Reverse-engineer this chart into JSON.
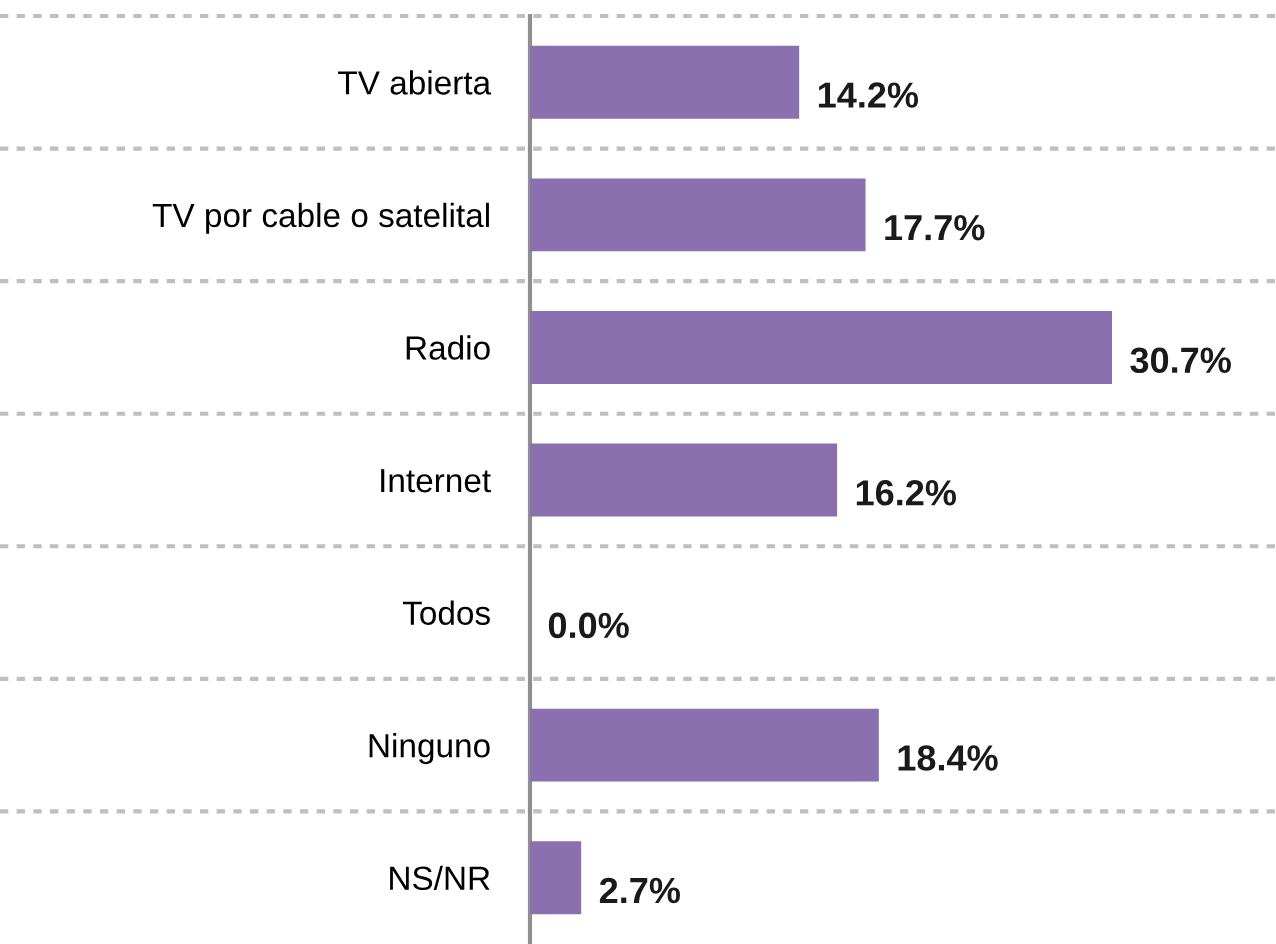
{
  "chart_data": {
    "type": "bar",
    "orientation": "horizontal",
    "categories": [
      "TV abierta",
      "TV por cable o satelital",
      "Radio",
      "Internet",
      "Todos",
      "Ninguno",
      "NS/NR"
    ],
    "values": [
      14.2,
      17.7,
      30.7,
      16.2,
      0.0,
      18.4,
      2.7
    ],
    "value_labels": [
      "14.2%",
      "17.7%",
      "30.7%",
      "16.2%",
      "0.0%",
      "18.4%",
      "2.7%"
    ],
    "color": "#8a70ae",
    "grid": "y"
  }
}
